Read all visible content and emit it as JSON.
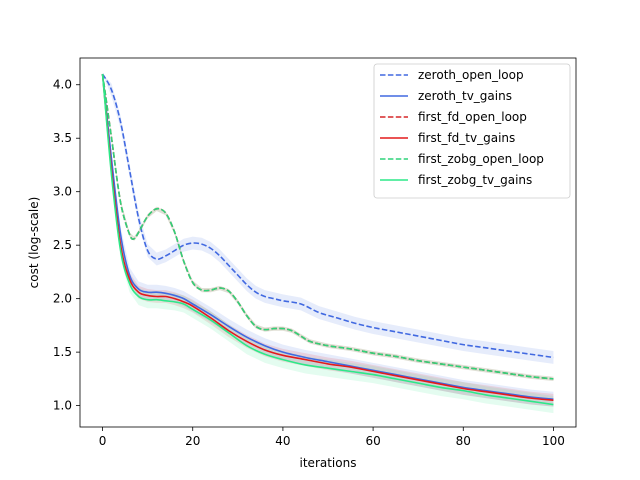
{
  "chart_data": {
    "type": "line",
    "xlabel": "iterations",
    "ylabel": "cost (log-scale)",
    "xlim": [
      -5,
      105
    ],
    "ylim": [
      0.8,
      4.25
    ],
    "xticks": [
      0,
      20,
      40,
      60,
      80,
      100
    ],
    "yticks": [
      "1.0",
      "1.5",
      "2.0",
      "2.5",
      "3.0",
      "3.5",
      "4.0"
    ],
    "grid": false,
    "legend_position": "top-right",
    "series": [
      {
        "name": "zeroth_open_loop",
        "color": "#4169e1",
        "dash": "dashed",
        "band": 0.06,
        "x": [
          0,
          2,
          4,
          6,
          8,
          10,
          12,
          14,
          16,
          18,
          20,
          22,
          24,
          26,
          28,
          30,
          32,
          34,
          36,
          38,
          40,
          44,
          48,
          52,
          56,
          60,
          65,
          70,
          75,
          80,
          85,
          90,
          95,
          100
        ],
        "y": [
          4.1,
          3.95,
          3.65,
          3.2,
          2.75,
          2.45,
          2.37,
          2.4,
          2.45,
          2.5,
          2.52,
          2.51,
          2.47,
          2.4,
          2.31,
          2.22,
          2.13,
          2.06,
          2.02,
          2.0,
          1.98,
          1.95,
          1.87,
          1.82,
          1.77,
          1.73,
          1.69,
          1.65,
          1.61,
          1.57,
          1.54,
          1.51,
          1.48,
          1.45
        ]
      },
      {
        "name": "zeroth_tv_gains",
        "color": "#4169e1",
        "dash": "solid",
        "band": 0.07,
        "x": [
          0,
          2,
          4,
          6,
          8,
          10,
          12,
          14,
          16,
          18,
          20,
          24,
          28,
          32,
          36,
          40,
          45,
          50,
          55,
          60,
          65,
          70,
          75,
          80,
          85,
          90,
          95,
          100
        ],
        "y": [
          4.1,
          3.3,
          2.6,
          2.22,
          2.09,
          2.06,
          2.06,
          2.05,
          2.03,
          2.0,
          1.95,
          1.85,
          1.74,
          1.64,
          1.56,
          1.5,
          1.45,
          1.41,
          1.37,
          1.33,
          1.29,
          1.25,
          1.21,
          1.17,
          1.14,
          1.11,
          1.08,
          1.06
        ]
      },
      {
        "name": "first_fd_open_loop",
        "color": "#d62728",
        "dash": "dashed",
        "band": 0.02,
        "x": [
          0,
          2,
          4,
          6,
          7,
          8,
          10,
          12,
          14,
          16,
          18,
          20,
          22,
          24,
          26,
          28,
          30,
          32,
          34,
          36,
          38,
          40,
          42,
          44,
          46,
          50,
          55,
          60,
          65,
          70,
          75,
          80,
          85,
          90,
          95,
          100
        ],
        "y": [
          4.1,
          3.5,
          2.9,
          2.6,
          2.56,
          2.62,
          2.77,
          2.84,
          2.8,
          2.62,
          2.35,
          2.15,
          2.08,
          2.08,
          2.1,
          2.07,
          1.97,
          1.84,
          1.74,
          1.71,
          1.72,
          1.72,
          1.7,
          1.65,
          1.6,
          1.56,
          1.53,
          1.49,
          1.46,
          1.42,
          1.39,
          1.36,
          1.33,
          1.3,
          1.27,
          1.25
        ]
      },
      {
        "name": "first_fd_tv_gains",
        "color": "#e31a1c",
        "dash": "solid",
        "band": 0.06,
        "x": [
          0,
          2,
          4,
          6,
          8,
          10,
          12,
          14,
          16,
          18,
          20,
          24,
          28,
          32,
          36,
          40,
          45,
          50,
          55,
          60,
          65,
          70,
          75,
          80,
          85,
          90,
          95,
          100
        ],
        "y": [
          4.1,
          3.2,
          2.5,
          2.18,
          2.06,
          2.03,
          2.02,
          2.02,
          2.0,
          1.97,
          1.93,
          1.82,
          1.7,
          1.6,
          1.52,
          1.47,
          1.43,
          1.39,
          1.36,
          1.32,
          1.28,
          1.24,
          1.2,
          1.16,
          1.13,
          1.1,
          1.07,
          1.05
        ]
      },
      {
        "name": "first_zobg_open_loop",
        "color": "#2ed47a",
        "dash": "dashed",
        "band": 0.02,
        "x": [
          0,
          2,
          4,
          6,
          7,
          8,
          10,
          12,
          14,
          16,
          18,
          20,
          22,
          24,
          26,
          28,
          30,
          32,
          34,
          36,
          38,
          40,
          42,
          44,
          46,
          50,
          55,
          60,
          65,
          70,
          75,
          80,
          85,
          90,
          95,
          100
        ],
        "y": [
          4.1,
          3.5,
          2.9,
          2.6,
          2.56,
          2.62,
          2.77,
          2.84,
          2.8,
          2.62,
          2.35,
          2.15,
          2.08,
          2.08,
          2.1,
          2.07,
          1.97,
          1.84,
          1.74,
          1.71,
          1.72,
          1.72,
          1.7,
          1.65,
          1.6,
          1.56,
          1.53,
          1.49,
          1.46,
          1.42,
          1.39,
          1.36,
          1.33,
          1.3,
          1.27,
          1.25
        ]
      },
      {
        "name": "first_zobg_tv_gains",
        "color": "#2de888",
        "dash": "solid",
        "band": 0.08,
        "x": [
          0,
          2,
          4,
          6,
          8,
          10,
          12,
          14,
          16,
          18,
          20,
          24,
          28,
          32,
          36,
          40,
          45,
          50,
          55,
          60,
          65,
          70,
          75,
          80,
          85,
          90,
          95,
          100
        ],
        "y": [
          4.1,
          3.15,
          2.45,
          2.14,
          2.02,
          1.99,
          1.99,
          1.98,
          1.97,
          1.95,
          1.9,
          1.8,
          1.68,
          1.56,
          1.48,
          1.43,
          1.38,
          1.35,
          1.32,
          1.29,
          1.25,
          1.21,
          1.17,
          1.14,
          1.1,
          1.07,
          1.04,
          1.01
        ]
      }
    ]
  }
}
